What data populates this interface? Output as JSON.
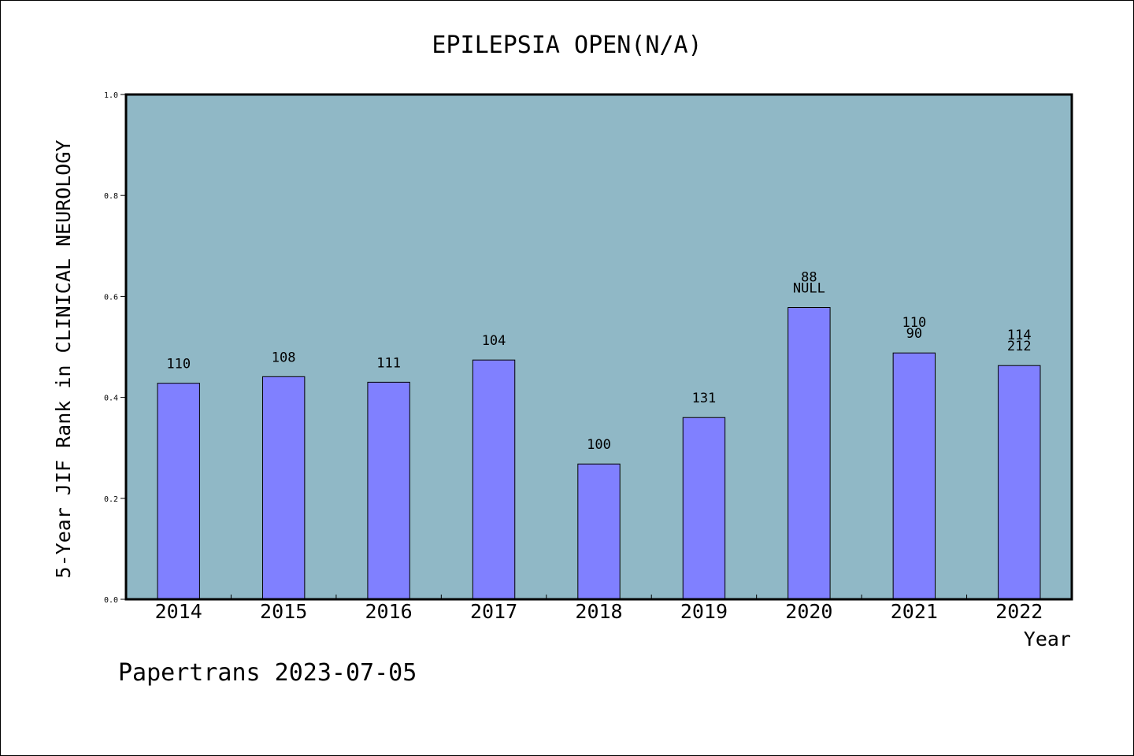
{
  "chart_data": {
    "type": "bar",
    "title": "EPILEPSIA OPEN(N/A)",
    "xlabel": "Year",
    "ylabel": "5-Year JIF Rank in CLINICAL NEUROLOGY",
    "ylim": [
      0,
      1.0
    ],
    "yticks": [
      "0.0",
      "0.2",
      "0.4",
      "0.6",
      "0.8",
      "1.0"
    ],
    "grid": false,
    "categories": [
      "2014",
      "2015",
      "2016",
      "2017",
      "2018",
      "2019",
      "2020",
      "2021",
      "2022"
    ],
    "values": [
      0.428,
      0.441,
      0.43,
      0.474,
      0.268,
      0.36,
      0.578,
      0.488,
      0.463
    ],
    "labels_top": [
      "",
      "",
      "",
      "",
      "",
      "",
      "88",
      "110",
      "114"
    ],
    "labels_bottom": [
      "110",
      "108",
      "111",
      "104",
      "100",
      "131",
      "NULL",
      "90",
      "212"
    ],
    "colors": {
      "plot_bg": "#90b8c6",
      "bar": "#8080ff",
      "frame": "#000000"
    }
  },
  "footer": "Papertrans 2023-07-05"
}
